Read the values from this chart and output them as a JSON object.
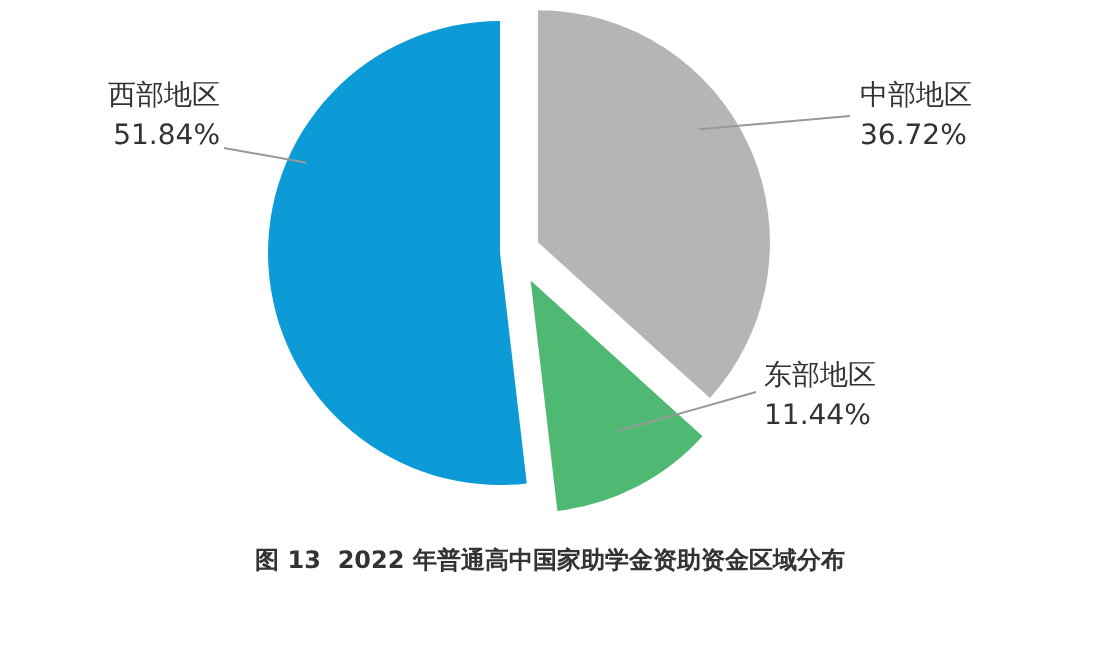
{
  "chart_data": {
    "type": "pie",
    "title": "图 13  2022 年普通高中国家助学金资助资金区域分布",
    "categories": [
      "中部地区",
      "东部地区",
      "西部地区"
    ],
    "values": [
      36.72,
      11.44,
      51.84
    ],
    "value_labels": [
      "36.72%",
      "11.44%",
      "51.84%"
    ],
    "colors": [
      "#b5b5b8",
      "#4fb872",
      "#0c9bd7"
    ]
  }
}
